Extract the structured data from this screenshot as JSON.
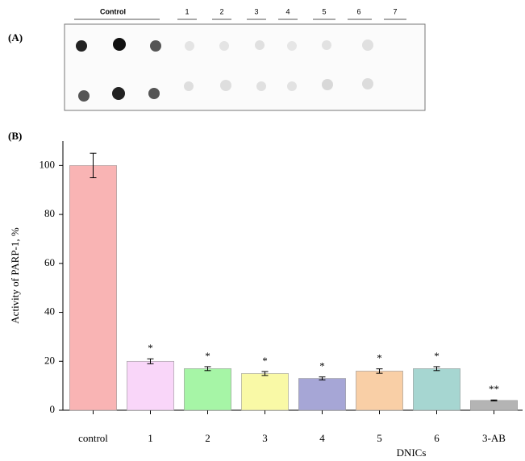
{
  "panel_a": {
    "label": "(A)",
    "lanes": [
      "Control",
      "1",
      "2",
      "3",
      "4",
      "5",
      "6",
      "7"
    ]
  },
  "chart_data": {
    "type": "bar",
    "panel_label": "(B)",
    "categories": [
      "control",
      "1",
      "2",
      "3",
      "4",
      "5",
      "6",
      "3-AB"
    ],
    "values": [
      100,
      20,
      17,
      15,
      13,
      16,
      17,
      4
    ],
    "errors": [
      5,
      1,
      0.8,
      0.8,
      0.6,
      0.9,
      0.8,
      0.2
    ],
    "colors": [
      "#f9b4b4",
      "#f9d6f9",
      "#a6f5a6",
      "#f9f9a6",
      "#a6a6d6",
      "#f9cfa6",
      "#a6d6d1",
      "#b4b4b4"
    ],
    "annotations": [
      null,
      "*",
      "*",
      "*",
      "*",
      "*",
      "*",
      "**"
    ],
    "ylabel": "Activity of PARP-1, %",
    "xlabel": "DNICs",
    "ylim": [
      0,
      110
    ],
    "yticks": [
      0,
      20,
      40,
      60,
      80,
      100
    ]
  }
}
